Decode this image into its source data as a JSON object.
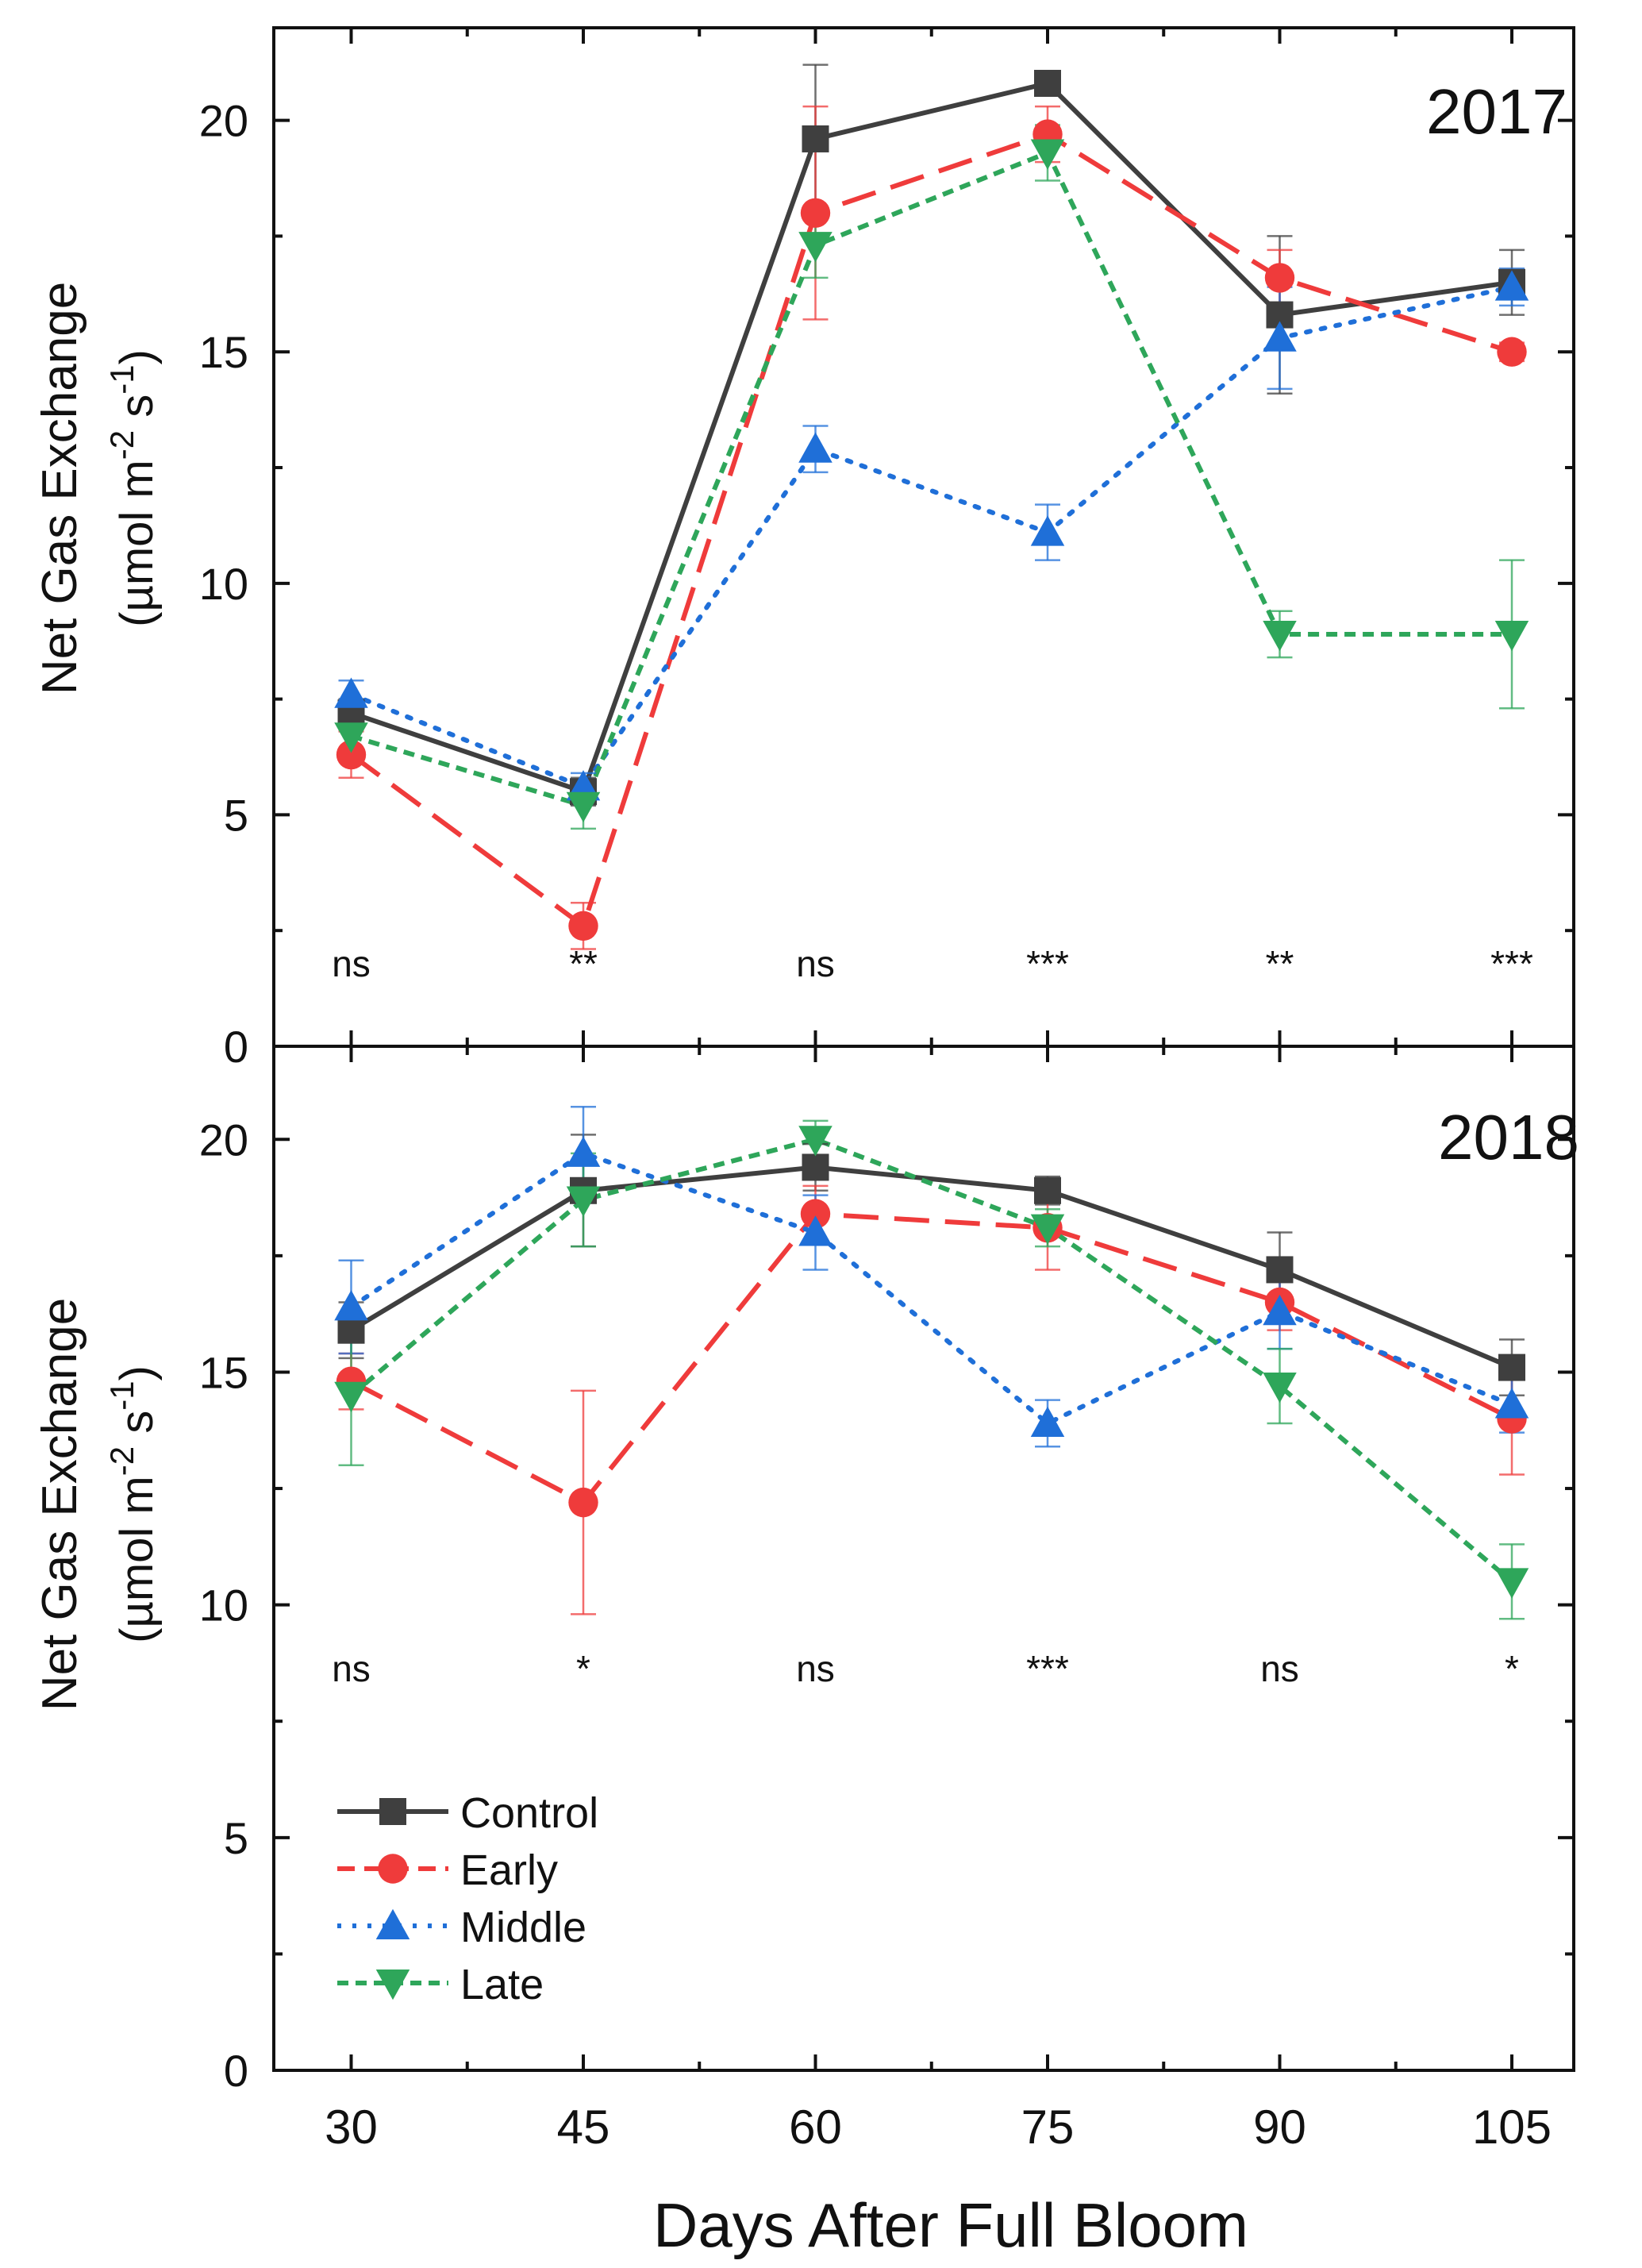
{
  "chart_data": {
    "type": "line",
    "xlabel": "Days After Full Bloom",
    "ylabel_line1": "Net Gas Exchange",
    "ylabel_unit": {
      "prefix": "(µmol m",
      "sup1": "-2",
      "mid": " s",
      "sup2": "-1",
      "suffix": ")"
    },
    "x": [
      30,
      45,
      60,
      75,
      90,
      105
    ],
    "x_ticks": [
      "30",
      "45",
      "60",
      "75",
      "90",
      "105"
    ],
    "xlim": [
      25,
      109
    ],
    "ylim": [
      0,
      22
    ],
    "y_ticks": [
      "0",
      "5",
      "10",
      "15",
      "20"
    ],
    "legend_position": "bottom-left",
    "series_styles": [
      {
        "name": "Control",
        "color": "#3f3f3f",
        "marker": "square",
        "dash": ""
      },
      {
        "name": "Early",
        "color": "#ef3b3b",
        "marker": "circle",
        "dash": "44 20"
      },
      {
        "name": "Middle",
        "color": "#1f6fd8",
        "marker": "triangle-up",
        "dash": "5 14"
      },
      {
        "name": "Late",
        "color": "#2ea65a",
        "marker": "triangle-down",
        "dash": "14 9"
      }
    ],
    "panels": [
      {
        "title": "2017",
        "significance": [
          "ns",
          "**",
          "ns",
          "***",
          "**",
          "***"
        ],
        "series": [
          {
            "name": "Control",
            "values": [
              7.2,
              5.5,
              19.6,
              20.8,
              15.8,
              16.5
            ],
            "errors": [
              0.3,
              0.3,
              1.6,
              0.2,
              1.7,
              0.7
            ]
          },
          {
            "name": "Early",
            "values": [
              6.3,
              2.6,
              18.0,
              19.7,
              16.6,
              15.0
            ],
            "errors": [
              0.5,
              0.5,
              2.3,
              0.6,
              0.6,
              0.2
            ]
          },
          {
            "name": "Middle",
            "values": [
              7.6,
              5.6,
              12.9,
              11.1,
              15.3,
              16.4
            ],
            "errors": [
              0.3,
              0.3,
              0.5,
              0.6,
              1.1,
              0.4
            ]
          },
          {
            "name": "Late",
            "values": [
              6.7,
              5.2,
              17.3,
              19.3,
              8.9,
              8.9
            ],
            "errors": [
              0.3,
              0.5,
              0.7,
              0.6,
              0.5,
              1.6
            ]
          }
        ]
      },
      {
        "title": "2018",
        "significance": [
          "ns",
          "*",
          "ns",
          "***",
          "ns",
          "*"
        ],
        "series": [
          {
            "name": "Control",
            "values": [
              15.9,
              18.9,
              19.4,
              18.9,
              17.2,
              15.1
            ],
            "errors": [
              0.6,
              1.2,
              0.5,
              0.3,
              0.8,
              0.6
            ]
          },
          {
            "name": "Early",
            "values": [
              14.8,
              12.2,
              18.4,
              18.1,
              16.5,
              14.0
            ],
            "errors": [
              0.6,
              2.4,
              0.6,
              0.9,
              0.6,
              1.2
            ]
          },
          {
            "name": "Middle",
            "values": [
              16.4,
              19.7,
              18.0,
              13.9,
              16.3,
              14.3
            ],
            "errors": [
              1.0,
              1.0,
              0.8,
              0.5,
              0.8,
              0.6
            ]
          },
          {
            "name": "Late",
            "values": [
              14.5,
              18.7,
              20.0,
              18.1,
              14.7,
              10.5
            ],
            "errors": [
              1.5,
              1.0,
              0.4,
              0.4,
              0.8,
              0.8
            ]
          }
        ]
      }
    ]
  }
}
